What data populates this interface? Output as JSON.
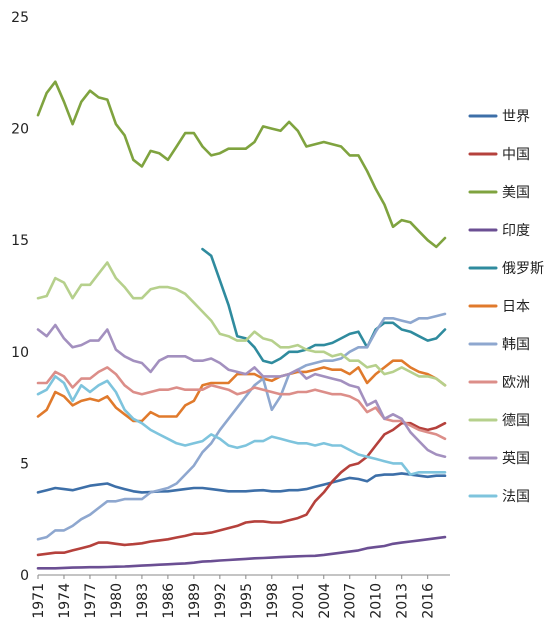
{
  "chart_data": {
    "type": "line",
    "title": "",
    "xlabel": "",
    "ylabel": "",
    "ylim": [
      0,
      25
    ],
    "y_ticks": [
      0,
      5,
      10,
      15,
      20,
      25
    ],
    "x_tick_labels": [
      "1971",
      "1974",
      "1977",
      "1980",
      "1983",
      "1986",
      "1989",
      "1992",
      "1995",
      "1998",
      "2001",
      "2004",
      "2007",
      "2010",
      "2013",
      "2016"
    ],
    "x": [
      1971,
      1972,
      1973,
      1974,
      1975,
      1976,
      1977,
      1978,
      1979,
      1980,
      1981,
      1982,
      1983,
      1984,
      1985,
      1986,
      1987,
      1988,
      1989,
      1990,
      1991,
      1992,
      1993,
      1994,
      1995,
      1996,
      1997,
      1998,
      1999,
      2000,
      2001,
      2002,
      2003,
      2004,
      2005,
      2006,
      2007,
      2008,
      2009,
      2010,
      2011,
      2012,
      2013,
      2014,
      2015,
      2016,
      2017,
      2018
    ],
    "grid": false,
    "legend_position": "right",
    "series": [
      {
        "name": "世界",
        "color": "#3d6fa8",
        "values": [
          3.7,
          3.8,
          3.9,
          3.85,
          3.8,
          3.9,
          4.0,
          4.05,
          4.1,
          3.95,
          3.85,
          3.75,
          3.7,
          3.72,
          3.74,
          3.75,
          3.8,
          3.85,
          3.9,
          3.9,
          3.85,
          3.8,
          3.75,
          3.75,
          3.75,
          3.78,
          3.8,
          3.75,
          3.75,
          3.8,
          3.8,
          3.85,
          3.95,
          4.05,
          4.15,
          4.25,
          4.35,
          4.3,
          4.2,
          4.45,
          4.5,
          4.5,
          4.55,
          4.5,
          4.45,
          4.4,
          4.45,
          4.45
        ]
      },
      {
        "name": "中国",
        "color": "#b5413c",
        "values": [
          0.9,
          0.95,
          1.0,
          1.0,
          1.1,
          1.2,
          1.3,
          1.45,
          1.45,
          1.4,
          1.35,
          1.38,
          1.42,
          1.5,
          1.55,
          1.6,
          1.68,
          1.75,
          1.85,
          1.85,
          1.9,
          2.0,
          2.1,
          2.2,
          2.35,
          2.4,
          2.4,
          2.35,
          2.35,
          2.45,
          2.55,
          2.7,
          3.3,
          3.7,
          4.2,
          4.6,
          4.9,
          5.0,
          5.3,
          5.8,
          6.3,
          6.5,
          6.8,
          6.8,
          6.6,
          6.5,
          6.6,
          6.8
        ]
      },
      {
        "name": "美国",
        "color": "#7fa33f",
        "values": [
          20.6,
          21.6,
          22.1,
          21.2,
          20.2,
          21.2,
          21.7,
          21.4,
          21.3,
          20.2,
          19.7,
          18.6,
          18.3,
          19.0,
          18.9,
          18.6,
          19.2,
          19.8,
          19.8,
          19.2,
          18.8,
          18.9,
          19.1,
          19.1,
          19.1,
          19.4,
          20.1,
          20.0,
          19.9,
          20.3,
          19.9,
          19.2,
          19.3,
          19.4,
          19.3,
          19.2,
          18.8,
          18.8,
          18.1,
          17.3,
          16.6,
          15.6,
          15.9,
          15.8,
          15.4,
          15.0,
          14.7,
          15.1
        ]
      },
      {
        "name": "印度",
        "color": "#6b4f93",
        "values": [
          0.3,
          0.3,
          0.3,
          0.32,
          0.33,
          0.34,
          0.35,
          0.35,
          0.36,
          0.37,
          0.38,
          0.4,
          0.42,
          0.44,
          0.46,
          0.48,
          0.5,
          0.52,
          0.55,
          0.6,
          0.62,
          0.65,
          0.67,
          0.7,
          0.72,
          0.75,
          0.76,
          0.78,
          0.8,
          0.82,
          0.84,
          0.85,
          0.86,
          0.9,
          0.95,
          1.0,
          1.05,
          1.1,
          1.2,
          1.25,
          1.3,
          1.4,
          1.45,
          1.5,
          1.55,
          1.6,
          1.65,
          1.7
        ]
      },
      {
        "name": "俄罗斯",
        "color": "#2f8b9e",
        "values": [
          null,
          null,
          null,
          null,
          null,
          null,
          null,
          null,
          null,
          null,
          null,
          null,
          null,
          null,
          null,
          null,
          null,
          null,
          null,
          14.6,
          14.3,
          13.2,
          12.1,
          10.7,
          10.6,
          10.2,
          9.6,
          9.5,
          9.7,
          10.0,
          10.0,
          10.1,
          10.3,
          10.3,
          10.4,
          10.6,
          10.8,
          10.9,
          10.2,
          11.0,
          11.3,
          11.3,
          11.0,
          10.9,
          10.7,
          10.5,
          10.6,
          11.0
        ]
      },
      {
        "name": "日本",
        "color": "#e07a2c",
        "values": [
          7.1,
          7.4,
          8.2,
          8.0,
          7.6,
          7.8,
          7.9,
          7.8,
          8.0,
          7.5,
          7.2,
          6.9,
          6.9,
          7.3,
          7.1,
          7.1,
          7.1,
          7.6,
          7.8,
          8.5,
          8.6,
          8.6,
          8.6,
          9.0,
          9.0,
          9.0,
          8.8,
          8.7,
          8.9,
          9.0,
          9.1,
          9.1,
          9.2,
          9.3,
          9.2,
          9.2,
          9.0,
          9.3,
          8.6,
          9.0,
          9.3,
          9.6,
          9.6,
          9.3,
          9.1,
          9.0,
          8.8,
          8.5
        ]
      },
      {
        "name": "韩国",
        "color": "#8ea7cf",
        "values": [
          1.6,
          1.7,
          2.0,
          2.0,
          2.2,
          2.5,
          2.7,
          3.0,
          3.3,
          3.3,
          3.4,
          3.4,
          3.4,
          3.7,
          3.8,
          3.9,
          4.1,
          4.5,
          4.9,
          5.5,
          5.9,
          6.5,
          7.0,
          7.5,
          8.0,
          8.5,
          8.8,
          7.4,
          8.0,
          9.0,
          9.2,
          9.4,
          9.5,
          9.6,
          9.6,
          9.7,
          10.0,
          10.2,
          10.2,
          10.9,
          11.5,
          11.5,
          11.4,
          11.3,
          11.5,
          11.5,
          11.6,
          11.7
        ]
      },
      {
        "name": "欧洲",
        "color": "#dc8e89",
        "values": [
          8.6,
          8.6,
          9.1,
          8.9,
          8.4,
          8.8,
          8.8,
          9.1,
          9.3,
          9.0,
          8.5,
          8.2,
          8.1,
          8.2,
          8.3,
          8.3,
          8.4,
          8.3,
          8.3,
          8.3,
          8.5,
          8.4,
          8.3,
          8.1,
          8.2,
          8.4,
          8.3,
          8.2,
          8.1,
          8.1,
          8.2,
          8.2,
          8.3,
          8.2,
          8.1,
          8.1,
          8.0,
          7.8,
          7.3,
          7.5,
          7.0,
          6.9,
          6.9,
          6.7,
          6.5,
          6.4,
          6.3,
          6.1
        ]
      },
      {
        "name": "德国",
        "color": "#b6d08c",
        "values": [
          12.4,
          12.5,
          13.3,
          13.1,
          12.4,
          13.0,
          13.0,
          13.5,
          14.0,
          13.3,
          12.9,
          12.4,
          12.4,
          12.8,
          12.9,
          12.9,
          12.8,
          12.6,
          12.2,
          11.8,
          11.4,
          10.8,
          10.7,
          10.5,
          10.5,
          10.9,
          10.6,
          10.5,
          10.2,
          10.2,
          10.3,
          10.1,
          10.0,
          10.0,
          9.8,
          9.9,
          9.6,
          9.6,
          9.3,
          9.4,
          9.0,
          9.1,
          9.3,
          9.1,
          8.9,
          8.9,
          8.8,
          8.5
        ]
      },
      {
        "name": "英国",
        "color": "#a390bf",
        "values": [
          11.0,
          10.7,
          11.2,
          10.6,
          10.2,
          10.3,
          10.5,
          10.5,
          11.0,
          10.1,
          9.8,
          9.6,
          9.5,
          9.1,
          9.6,
          9.8,
          9.8,
          9.8,
          9.6,
          9.6,
          9.7,
          9.5,
          9.2,
          9.1,
          9.0,
          9.3,
          8.9,
          8.9,
          8.9,
          9.0,
          9.2,
          8.8,
          9.0,
          8.9,
          8.8,
          8.7,
          8.5,
          8.4,
          7.6,
          7.8,
          7.0,
          7.2,
          7.0,
          6.4,
          6.0,
          5.6,
          5.4,
          5.3
        ]
      },
      {
        "name": "法国",
        "color": "#7ec4dd",
        "values": [
          8.1,
          8.3,
          8.9,
          8.6,
          7.8,
          8.5,
          8.2,
          8.5,
          8.7,
          8.2,
          7.4,
          7.0,
          6.8,
          6.5,
          6.3,
          6.1,
          5.9,
          5.8,
          5.9,
          6.0,
          6.3,
          6.1,
          5.8,
          5.7,
          5.8,
          6.0,
          6.0,
          6.2,
          6.1,
          6.0,
          5.9,
          5.9,
          5.8,
          5.9,
          5.8,
          5.8,
          5.6,
          5.4,
          5.3,
          5.2,
          5.1,
          5.0,
          5.0,
          4.5,
          4.6,
          4.6,
          4.6,
          4.6
        ]
      }
    ]
  }
}
